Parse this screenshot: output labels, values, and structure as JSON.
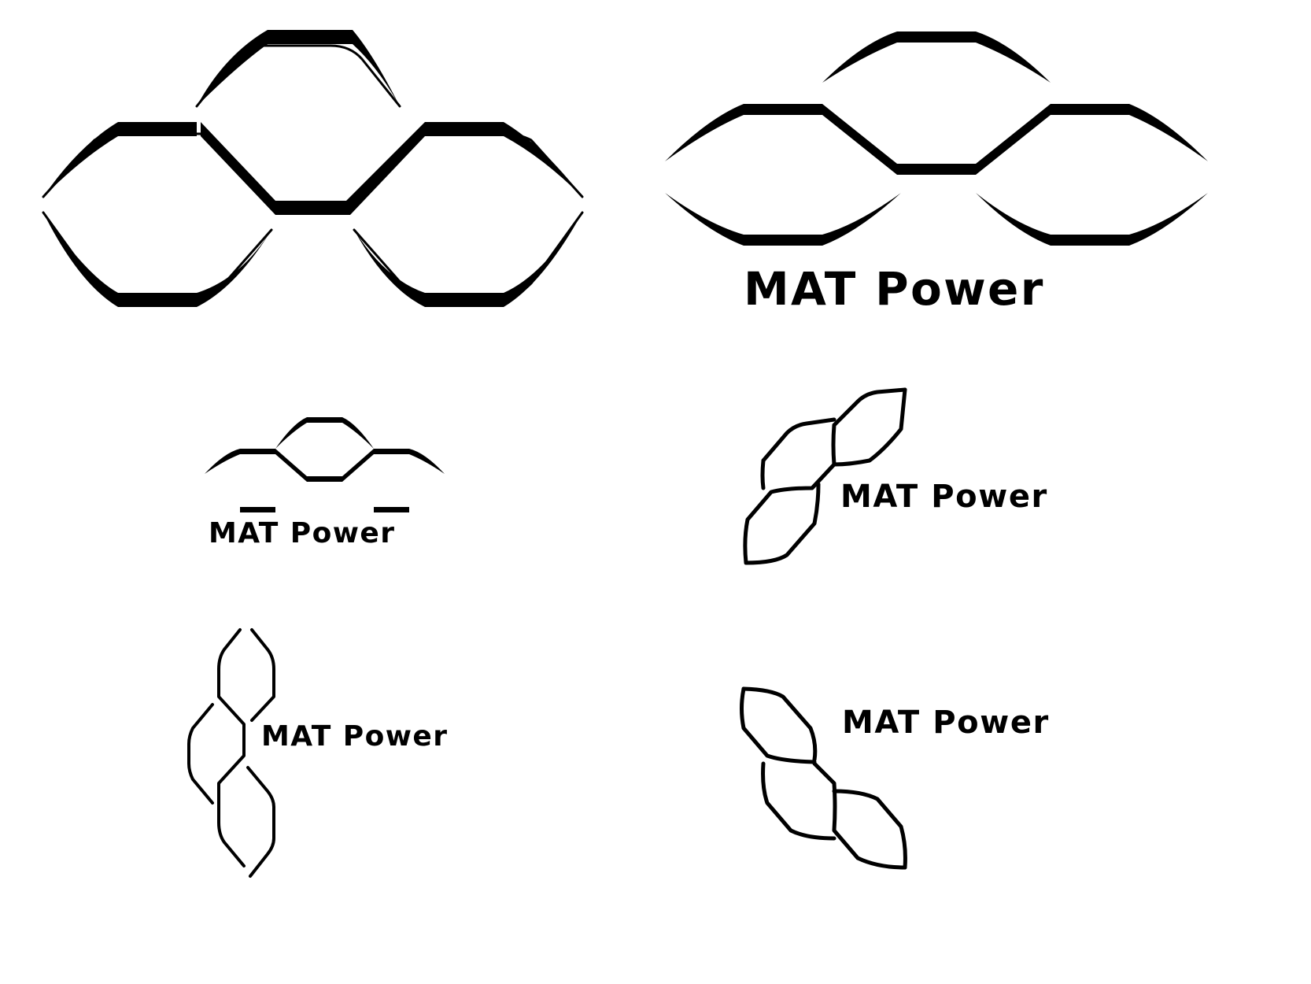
{
  "brand": {
    "name": "MAT Power",
    "ink_color": "#000000",
    "background_color": "#ffffff"
  },
  "variants": [
    {
      "layout": "symbol-only",
      "orientation": "horizontal",
      "wordmark": ""
    },
    {
      "layout": "symbol-above-wordmark",
      "orientation": "horizontal",
      "wordmark": "MAT Power"
    },
    {
      "layout": "symbol-above-wordmark",
      "orientation": "horizontal-small",
      "wordmark": "MAT Power"
    },
    {
      "layout": "symbol-left-of-wordmark",
      "orientation": "diagonal",
      "wordmark": "MAT Power"
    },
    {
      "layout": "symbol-left-of-wordmark",
      "orientation": "vertical",
      "wordmark": "MAT Power"
    },
    {
      "layout": "symbol-left-of-wordmark",
      "orientation": "diagonal-mirrored",
      "wordmark": "MAT Power"
    }
  ],
  "icons": {
    "symbol": "interlocked-hexagon-chain-icon"
  }
}
